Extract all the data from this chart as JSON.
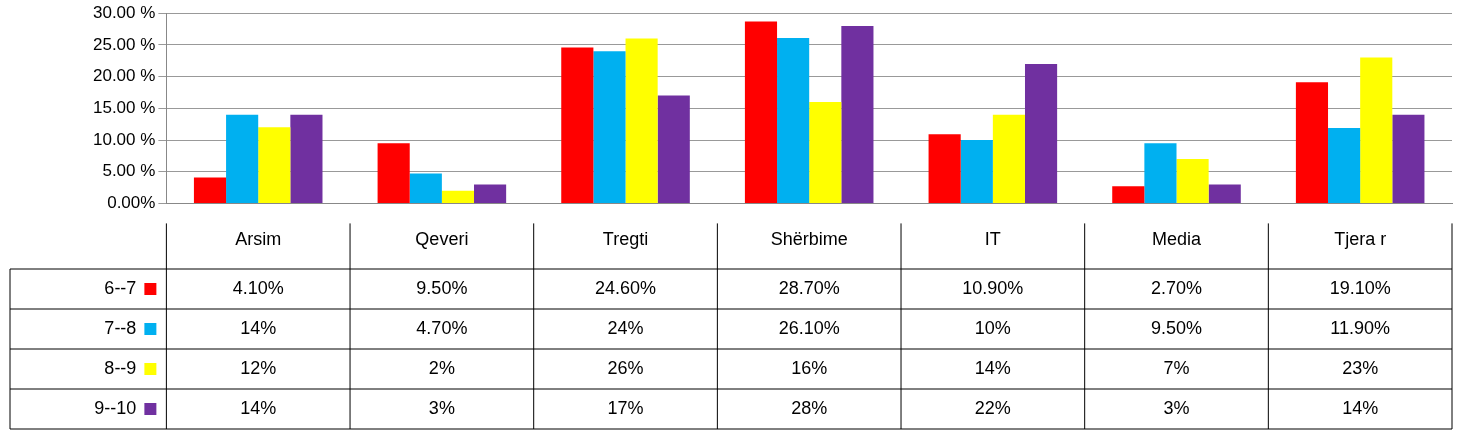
{
  "chart_data": {
    "type": "bar",
    "categories": [
      "Arsim",
      "Qeveri",
      "Tregti",
      "Shërbime",
      "IT",
      "Media",
      "Tjera r"
    ],
    "series": [
      {
        "name": "6--7",
        "color": "#ff0000",
        "values": [
          4.1,
          9.5,
          24.6,
          28.7,
          10.9,
          2.7,
          19.1
        ],
        "value_labels": [
          "4.10%",
          "9.50%",
          "24.60%",
          "28.70%",
          "10.90%",
          "2.70%",
          "19.10%"
        ]
      },
      {
        "name": "7--8",
        "color": "#00b0f0",
        "values": [
          14,
          4.7,
          24,
          26.1,
          10,
          9.5,
          11.9
        ],
        "value_labels": [
          "14%",
          "4.70%",
          "24%",
          "26.10%",
          "10%",
          "9.50%",
          "11.90%"
        ]
      },
      {
        "name": "8--9",
        "color": "#ffff00",
        "values": [
          12,
          2,
          26,
          16,
          14,
          7,
          23
        ],
        "value_labels": [
          "12%",
          "2%",
          "26%",
          "16%",
          "14%",
          "7%",
          "23%"
        ]
      },
      {
        "name": "9--10",
        "color": "#7030a0",
        "values": [
          14,
          3,
          17,
          28,
          22,
          3,
          14
        ],
        "value_labels": [
          "14%",
          "3%",
          "17%",
          "28%",
          "22%",
          "3%",
          "14%"
        ]
      }
    ],
    "ylim": [
      0,
      30
    ],
    "yticks": [
      {
        "value": 0,
        "label": "0.00%"
      },
      {
        "value": 5,
        "label": "5.00 %"
      },
      {
        "value": 10,
        "label": "10.00 %"
      },
      {
        "value": 15,
        "label": "15.00 %"
      },
      {
        "value": 20,
        "label": "20.00 %"
      },
      {
        "value": 25,
        "label": "25.00 %"
      },
      {
        "value": 30,
        "label": "30.00 %"
      }
    ],
    "grid": "y",
    "legend": "bottom left"
  }
}
